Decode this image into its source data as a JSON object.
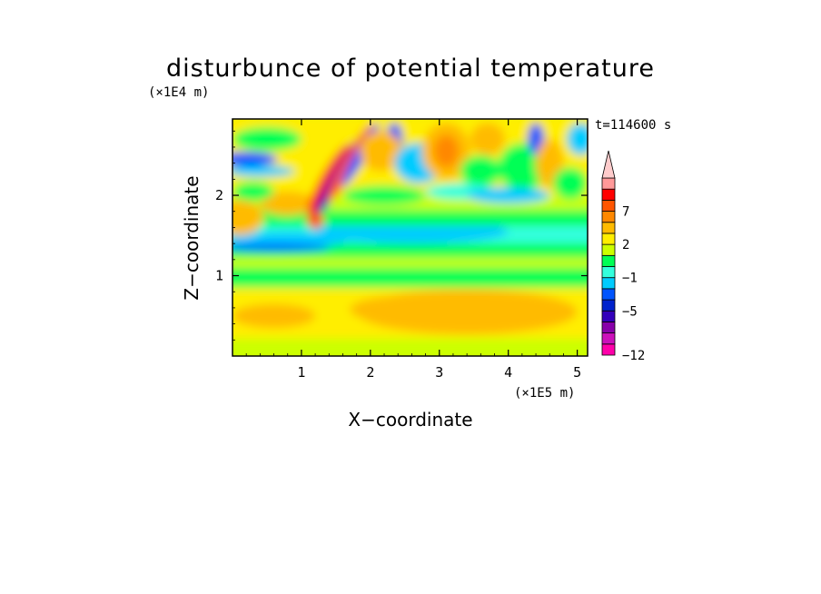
{
  "chart_data": {
    "type": "heatmap",
    "title": "disturbunce of potential temperature",
    "time_label": "t=114600 s",
    "xlabel": "X−coordinate",
    "ylabel": "Z−coordinate",
    "x_unit": "(×1E5 m)",
    "y_unit": "(×1E4 m)",
    "xlim": [
      0,
      5.15
    ],
    "ylim": [
      0,
      2.95
    ],
    "x_ticks": [
      1,
      2,
      3,
      4,
      5
    ],
    "x_tick_labels": [
      "1",
      "2",
      "3",
      "4",
      "5"
    ],
    "y_ticks": [
      1,
      2
    ],
    "y_tick_labels": [
      "1",
      "2"
    ],
    "colorbar": {
      "levels": [
        -12,
        -10,
        -8,
        -6.5,
        -5,
        -3.5,
        -2,
        -1,
        0,
        1,
        2,
        3.5,
        5,
        7,
        8.5,
        10,
        12
      ],
      "tick_labels": [
        {
          "value": 7,
          "label": "7"
        },
        {
          "value": 2,
          "label": "2"
        },
        {
          "value": -1,
          "label": "−1"
        },
        {
          "value": -5,
          "label": "−5"
        },
        {
          "value": -12,
          "label": "−12"
        }
      ],
      "colors": [
        "#ff00aa",
        "#cc11bb",
        "#8800aa",
        "#3300bb",
        "#0022cc",
        "#0055ff",
        "#00ccff",
        "#33ffdd",
        "#00ff55",
        "#ccff00",
        "#ffee00",
        "#ffbb00",
        "#ff8800",
        "#ff5500",
        "#ff0000",
        "#ff9999",
        "#ffcccc"
      ],
      "extend": "max"
    }
  }
}
